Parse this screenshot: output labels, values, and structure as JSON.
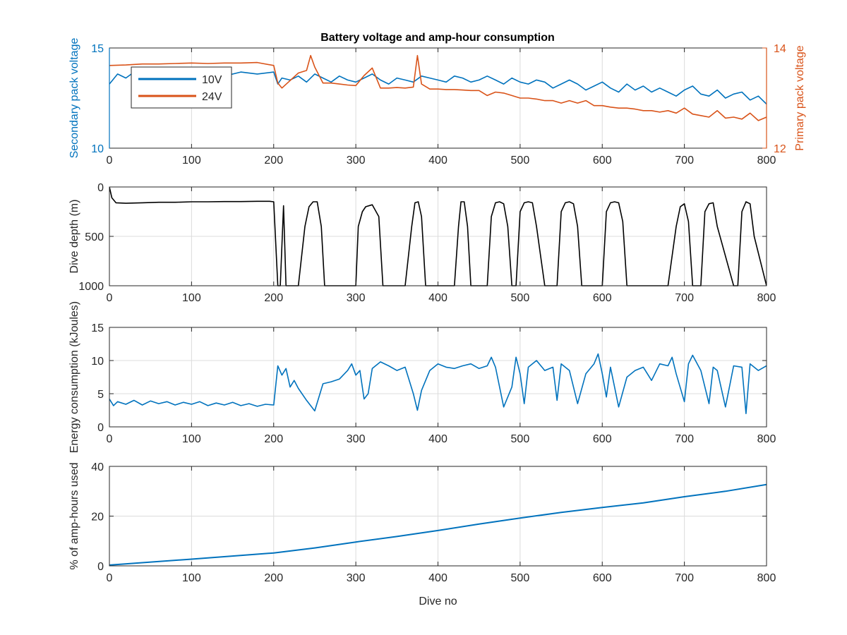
{
  "figure": {
    "title": "Battery voltage and amp-hour consumption"
  },
  "colors": {
    "blue": "#0072BD",
    "orange": "#D95319",
    "black": "#000000",
    "axis": "#262626",
    "grid": "#dcdcdc"
  },
  "chart_data": [
    {
      "id": "voltage",
      "type": "line",
      "title": "Battery voltage and amp-hour consumption",
      "xlabel": "",
      "ylabel": "Secondary pack voltage",
      "ylabel_right": "Primary pack voltage",
      "xlim": [
        0,
        800
      ],
      "ylim": [
        10,
        15
      ],
      "ylim_right": [
        12,
        14
      ],
      "xticks": [
        0,
        100,
        200,
        300,
        400,
        500,
        600,
        700,
        800
      ],
      "yticks": [
        10,
        15
      ],
      "yticks_right": [
        12,
        14
      ],
      "grid": true,
      "legend": {
        "placement": "top-left",
        "entries": [
          "10V",
          "24V"
        ]
      },
      "series": [
        {
          "name": "10V",
          "axis": "left",
          "color": "#0072BD",
          "x": [
            0,
            10,
            20,
            30,
            40,
            60,
            80,
            100,
            120,
            140,
            160,
            180,
            200,
            205,
            210,
            220,
            230,
            240,
            250,
            260,
            270,
            280,
            290,
            300,
            310,
            320,
            330,
            340,
            350,
            360,
            370,
            380,
            390,
            400,
            410,
            420,
            430,
            440,
            450,
            460,
            470,
            480,
            490,
            500,
            510,
            520,
            530,
            540,
            550,
            560,
            570,
            580,
            590,
            600,
            610,
            620,
            630,
            640,
            650,
            660,
            670,
            680,
            690,
            700,
            710,
            720,
            730,
            740,
            750,
            760,
            770,
            780,
            790,
            800
          ],
          "y": [
            13.2,
            13.7,
            13.5,
            13.8,
            13.6,
            13.7,
            13.6,
            13.8,
            13.7,
            13.6,
            13.8,
            13.7,
            13.8,
            13.2,
            13.5,
            13.4,
            13.6,
            13.3,
            13.7,
            13.5,
            13.3,
            13.6,
            13.4,
            13.3,
            13.5,
            13.7,
            13.4,
            13.2,
            13.5,
            13.4,
            13.3,
            13.6,
            13.5,
            13.4,
            13.3,
            13.6,
            13.5,
            13.3,
            13.4,
            13.6,
            13.4,
            13.2,
            13.5,
            13.3,
            13.2,
            13.4,
            13.3,
            13.0,
            13.2,
            13.4,
            13.2,
            12.9,
            13.1,
            13.3,
            13.0,
            12.8,
            13.2,
            12.9,
            13.1,
            12.8,
            13.0,
            12.8,
            12.6,
            12.9,
            13.1,
            12.7,
            12.6,
            12.9,
            12.5,
            12.7,
            12.8,
            12.4,
            12.6,
            12.2
          ]
        },
        {
          "name": "24V",
          "axis": "right",
          "color": "#D95319",
          "x": [
            0,
            20,
            40,
            60,
            80,
            100,
            120,
            140,
            160,
            180,
            200,
            205,
            210,
            220,
            230,
            240,
            245,
            250,
            260,
            270,
            280,
            290,
            300,
            310,
            320,
            330,
            340,
            350,
            360,
            370,
            375,
            380,
            390,
            400,
            410,
            420,
            430,
            440,
            450,
            460,
            470,
            480,
            490,
            500,
            510,
            520,
            530,
            540,
            550,
            560,
            570,
            580,
            590,
            600,
            610,
            620,
            630,
            640,
            650,
            660,
            670,
            680,
            690,
            700,
            710,
            720,
            730,
            740,
            750,
            760,
            770,
            780,
            790,
            800
          ],
          "y": [
            13.65,
            13.66,
            13.68,
            13.68,
            13.69,
            13.7,
            13.69,
            13.7,
            13.7,
            13.71,
            13.65,
            13.3,
            13.2,
            13.35,
            13.5,
            13.55,
            13.85,
            13.62,
            13.3,
            13.3,
            13.28,
            13.26,
            13.25,
            13.45,
            13.6,
            13.2,
            13.2,
            13.21,
            13.2,
            13.22,
            13.85,
            13.28,
            13.18,
            13.18,
            13.17,
            13.17,
            13.16,
            13.15,
            13.15,
            13.05,
            13.12,
            13.1,
            13.05,
            13.0,
            13.0,
            12.98,
            12.95,
            12.95,
            12.9,
            12.95,
            12.9,
            12.95,
            12.85,
            12.85,
            12.82,
            12.8,
            12.8,
            12.78,
            12.75,
            12.75,
            12.72,
            12.75,
            12.7,
            12.8,
            12.68,
            12.65,
            12.62,
            12.75,
            12.6,
            12.62,
            12.58,
            12.7,
            12.55,
            12.62
          ]
        }
      ]
    },
    {
      "id": "depth",
      "type": "line",
      "xlabel": "",
      "ylabel": "Dive depth (m)",
      "xlim": [
        0,
        800
      ],
      "ylim": [
        1000,
        0
      ],
      "y_reversed": true,
      "xticks": [
        0,
        100,
        200,
        300,
        400,
        500,
        600,
        700,
        800
      ],
      "yticks": [
        0,
        500,
        1000
      ],
      "grid": true,
      "series": [
        {
          "color": "#000000",
          "x": [
            0,
            3,
            8,
            20,
            40,
            60,
            80,
            100,
            120,
            140,
            160,
            180,
            195,
            200,
            205,
            208,
            212,
            215,
            218,
            222,
            230,
            238,
            243,
            248,
            253,
            258,
            262,
            275,
            290,
            300,
            303,
            308,
            312,
            320,
            328,
            333,
            340,
            350,
            360,
            368,
            372,
            376,
            380,
            385,
            390,
            400,
            410,
            420,
            425,
            428,
            432,
            436,
            440,
            445,
            460,
            465,
            470,
            475,
            480,
            485,
            490,
            495,
            500,
            505,
            510,
            515,
            520,
            530,
            545,
            550,
            555,
            560,
            565,
            570,
            575,
            580,
            600,
            605,
            610,
            615,
            620,
            625,
            630,
            635,
            660,
            680,
            690,
            695,
            700,
            705,
            710,
            720,
            725,
            730,
            735,
            740,
            760,
            765,
            770,
            775,
            780,
            785,
            800
          ],
          "y": [
            0,
            110,
            160,
            165,
            160,
            155,
            155,
            150,
            150,
            148,
            148,
            145,
            145,
            150,
            1000,
            1000,
            190,
            1000,
            1000,
            1000,
            1000,
            400,
            200,
            150,
            150,
            400,
            1000,
            1000,
            1000,
            1000,
            400,
            250,
            200,
            180,
            300,
            1000,
            1000,
            1000,
            1000,
            400,
            160,
            150,
            300,
            1000,
            1000,
            1000,
            1000,
            1000,
            400,
            150,
            150,
            400,
            1000,
            1000,
            1000,
            300,
            160,
            150,
            170,
            400,
            1000,
            1000,
            250,
            160,
            150,
            160,
            400,
            1000,
            1000,
            250,
            160,
            150,
            170,
            400,
            1000,
            1000,
            1000,
            250,
            160,
            150,
            160,
            350,
            1000,
            1000,
            1000,
            1000,
            400,
            200,
            170,
            350,
            1000,
            1000,
            250,
            170,
            160,
            400,
            1000,
            1000,
            250,
            150,
            170,
            500,
            1000
          ]
        }
      ]
    },
    {
      "id": "energy",
      "type": "line",
      "xlabel": "",
      "ylabel": "Energy consumption (kJoules)",
      "xlim": [
        0,
        800
      ],
      "ylim": [
        0,
        15
      ],
      "xticks": [
        0,
        100,
        200,
        300,
        400,
        500,
        600,
        700,
        800
      ],
      "yticks": [
        0,
        5,
        10,
        15
      ],
      "grid": true,
      "series": [
        {
          "color": "#0072BD",
          "x": [
            0,
            5,
            10,
            20,
            30,
            40,
            50,
            60,
            70,
            80,
            90,
            100,
            110,
            120,
            130,
            140,
            150,
            160,
            170,
            180,
            190,
            200,
            205,
            210,
            215,
            220,
            225,
            230,
            240,
            250,
            260,
            270,
            280,
            290,
            295,
            300,
            305,
            310,
            315,
            320,
            330,
            340,
            350,
            360,
            370,
            375,
            380,
            390,
            400,
            410,
            420,
            430,
            440,
            450,
            460,
            465,
            470,
            480,
            490,
            495,
            500,
            505,
            510,
            520,
            530,
            540,
            545,
            550,
            560,
            570,
            580,
            590,
            595,
            600,
            605,
            610,
            620,
            630,
            640,
            650,
            660,
            670,
            680,
            685,
            690,
            700,
            705,
            710,
            720,
            730,
            735,
            740,
            750,
            760,
            770,
            775,
            780,
            790,
            800
          ],
          "y": [
            4.2,
            3.2,
            3.8,
            3.4,
            4.0,
            3.3,
            3.9,
            3.5,
            3.8,
            3.3,
            3.7,
            3.4,
            3.8,
            3.2,
            3.6,
            3.3,
            3.7,
            3.2,
            3.5,
            3.1,
            3.4,
            3.3,
            9.2,
            7.8,
            8.8,
            6.0,
            7.0,
            5.8,
            4.0,
            2.4,
            6.5,
            6.8,
            7.2,
            8.5,
            9.5,
            7.8,
            8.5,
            4.2,
            5.0,
            8.8,
            9.8,
            9.2,
            8.5,
            9.0,
            5.0,
            2.5,
            5.5,
            8.5,
            9.5,
            9.0,
            8.8,
            9.2,
            9.5,
            8.8,
            9.2,
            10.5,
            9.0,
            3.0,
            6.0,
            10.5,
            8.0,
            3.5,
            9.0,
            10.0,
            8.5,
            9.0,
            4.0,
            9.5,
            8.5,
            3.5,
            8.0,
            9.5,
            11.0,
            8.0,
            4.5,
            9.0,
            3.0,
            7.5,
            8.5,
            9.0,
            7.0,
            9.5,
            9.2,
            10.5,
            8.0,
            3.8,
            9.5,
            10.8,
            8.5,
            3.5,
            9.0,
            8.5,
            3.0,
            9.2,
            9.0,
            2.0,
            9.5,
            8.5,
            9.2
          ]
        }
      ]
    },
    {
      "id": "amp_hours",
      "type": "line",
      "xlabel": "Dive no",
      "ylabel": "% of amp-hours used",
      "xlim": [
        0,
        800
      ],
      "ylim": [
        0,
        40
      ],
      "xticks": [
        0,
        100,
        200,
        300,
        400,
        500,
        600,
        700,
        800
      ],
      "yticks": [
        0,
        20,
        40
      ],
      "grid": true,
      "series": [
        {
          "color": "#0072BD",
          "x": [
            0,
            100,
            200,
            250,
            300,
            350,
            400,
            450,
            500,
            550,
            600,
            650,
            700,
            750,
            800
          ],
          "y": [
            0.3,
            2.7,
            5.2,
            7.2,
            9.6,
            11.8,
            14.2,
            16.8,
            19.2,
            21.5,
            23.5,
            25.3,
            27.8,
            30.0,
            32.7
          ]
        }
      ]
    }
  ]
}
